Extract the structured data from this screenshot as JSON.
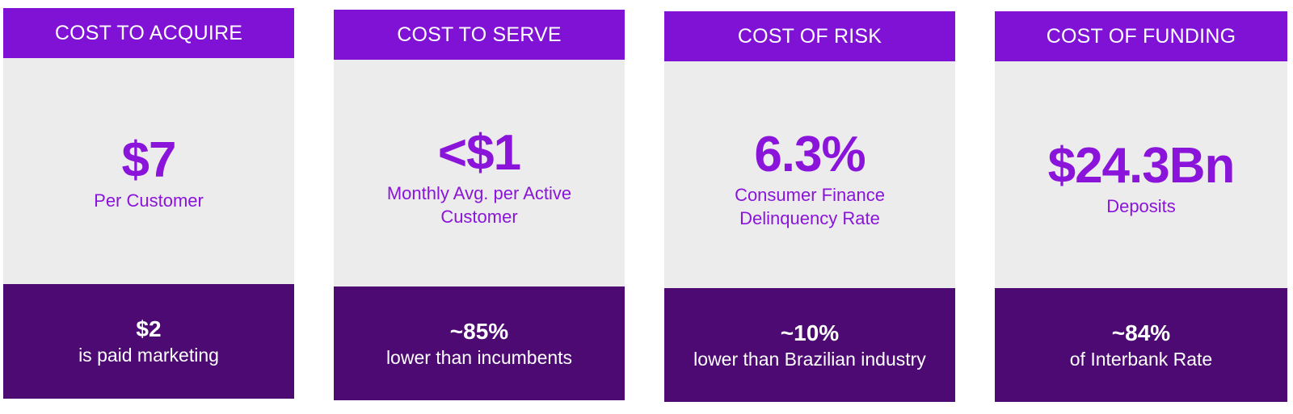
{
  "colors": {
    "header": "#8012d6",
    "body_bg": "#ececec",
    "body_text": "#8a14d9",
    "footer": "#4c0a72"
  },
  "cards": [
    {
      "header": "COST TO ACQUIRE",
      "value": "$7",
      "label": "Per Customer",
      "footer_value": "$2",
      "footer_label": "is paid marketing"
    },
    {
      "header": "COST TO SERVE",
      "value": "<$1",
      "label": "Monthly Avg. per Active Customer",
      "footer_value": "~85%",
      "footer_label": "lower than incumbents"
    },
    {
      "header": "COST OF RISK",
      "value": "6.3%",
      "label": "Consumer Finance Delinquency Rate",
      "footer_value": "~10%",
      "footer_label": "lower than Brazilian industry"
    },
    {
      "header": "COST OF FUNDING",
      "value": "$24.3Bn",
      "label": "Deposits",
      "footer_value": "~84%",
      "footer_label": "of Interbank Rate"
    }
  ]
}
